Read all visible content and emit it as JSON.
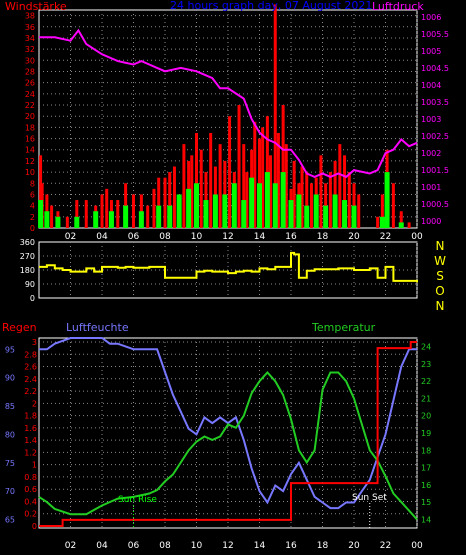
{
  "title": "24 hours graph day, 07 August 2021",
  "colors": {
    "wind_gust": "#ff0000",
    "wind_avg": "#00ff00",
    "pressure": "#ff00ff",
    "direction": "#ffff00",
    "rain": "#ff0000",
    "humidity": "#7777ff",
    "temperature": "#22cc22",
    "title": "#0000ff",
    "axis_text": "#ffffff",
    "dir_letters": "#ffff00"
  },
  "chart_data": [
    {
      "type": "bar",
      "title": "24 hours graph day, 07 August 2021",
      "left_axis_label": "Windstärke",
      "right_axis_label": "Luftdruck",
      "x_ticks": [
        "02",
        "04",
        "06",
        "08",
        "10",
        "12",
        "14",
        "16",
        "18",
        "20",
        "22",
        "00"
      ],
      "left_ticks": [
        "0",
        "2",
        "4",
        "6",
        "8",
        "10",
        "12",
        "14",
        "16",
        "18",
        "20",
        "22",
        "24",
        "26",
        "28",
        "30",
        "32",
        "34",
        "36",
        "38"
      ],
      "right_ticks": [
        "1000",
        "1000.5",
        "1001",
        "1001.5",
        "1002",
        "1002.5",
        "1003",
        "1003.5",
        "1004",
        "1004.5",
        "1005",
        "1005.5",
        "1006"
      ],
      "ylim_left": [
        0,
        39
      ],
      "ylim_right": [
        999.8,
        1006.2
      ],
      "grid": true,
      "series": [
        {
          "name": "Windstärke",
          "kind": "gust",
          "hours": [
            0.1,
            0.2,
            0.5,
            0.8,
            1.2,
            1.8,
            2.4,
            3.0,
            3.6,
            4.0,
            4.3,
            4.6,
            5.0,
            5.5,
            6.0,
            6.5,
            6.9,
            7.3,
            7.6,
            8.0,
            8.3,
            8.6,
            8.9,
            9.2,
            9.5,
            9.7,
            10.0,
            10.3,
            10.6,
            10.9,
            11.2,
            11.5,
            11.8,
            12.1,
            12.4,
            12.7,
            13.0,
            13.2,
            13.5,
            13.7,
            14.0,
            14.2,
            14.5,
            14.7,
            15.0,
            15.2,
            15.5,
            15.7,
            16.0,
            16.2,
            16.5,
            16.7,
            17.0,
            17.3,
            17.6,
            17.9,
            18.2,
            18.5,
            18.8,
            19.1,
            19.4,
            19.7,
            20.0,
            20.3,
            21.5,
            21.8,
            22.1,
            22.5,
            23.0,
            23.5
          ],
          "values": [
            13,
            8,
            6,
            4,
            3,
            2,
            5,
            5,
            4,
            6,
            7,
            5,
            5,
            8,
            6,
            6,
            4,
            7,
            9,
            9,
            10,
            11,
            6,
            15,
            12,
            13,
            17,
            14,
            10,
            17,
            11,
            15,
            12,
            20,
            10,
            22,
            15,
            10,
            14,
            19,
            16,
            18,
            20,
            13,
            40,
            17,
            22,
            15,
            7,
            12,
            8,
            11,
            10,
            8,
            9,
            13,
            8,
            10,
            12,
            15,
            13,
            10,
            8,
            6,
            2,
            6,
            14,
            8,
            3,
            1
          ]
        },
        {
          "name": "Windstärke Mittel",
          "kind": "average",
          "hours": [
            0.1,
            0.5,
            1.2,
            2.4,
            3.6,
            4.6,
            5.5,
            6.5,
            7.6,
            8.3,
            8.9,
            9.5,
            10.0,
            10.6,
            11.2,
            11.8,
            12.4,
            13.0,
            13.5,
            14.0,
            14.5,
            15.0,
            15.5,
            16.0,
            16.5,
            17.0,
            17.6,
            18.2,
            18.8,
            19.4,
            20.0,
            21.8,
            22.1,
            23.0
          ],
          "values": [
            5,
            3,
            2,
            2,
            3,
            3,
            4,
            3,
            4,
            4,
            6,
            7,
            8,
            5,
            6,
            6,
            8,
            5,
            9,
            8,
            10,
            8,
            10,
            5,
            6,
            4,
            6,
            4,
            6,
            5,
            4,
            2,
            10,
            1
          ]
        },
        {
          "name": "Luftdruck",
          "kind": "pressure",
          "hours": [
            0,
            1,
            2,
            2.5,
            3,
            4,
            5,
            6,
            6.5,
            7,
            7.5,
            8,
            9,
            10,
            11,
            11.5,
            12,
            13,
            13.5,
            14,
            14.5,
            15,
            15.5,
            16,
            16.5,
            17,
            17.5,
            18,
            18.5,
            19,
            19.5,
            20,
            21,
            21.5,
            22,
            22.5,
            23,
            23.5,
            24
          ],
          "values": [
            1005.4,
            1005.4,
            1005.3,
            1005.6,
            1005.2,
            1004.9,
            1004.7,
            1004.6,
            1004.7,
            1004.6,
            1004.5,
            1004.4,
            1004.5,
            1004.4,
            1004.2,
            1003.9,
            1003.9,
            1003.6,
            1003.0,
            1002.6,
            1002.4,
            1002.3,
            1002.1,
            1002.1,
            1001.8,
            1001.4,
            1001.3,
            1001.4,
            1001.3,
            1001.4,
            1001.3,
            1001.5,
            1001.4,
            1001.5,
            1002.0,
            1002.1,
            1002.4,
            1002.2,
            1002.3
          ]
        }
      ]
    },
    {
      "type": "line",
      "right_labels": [
        "N",
        "W",
        "S",
        "O",
        "N"
      ],
      "left_ticks": [
        "0",
        "90",
        "180",
        "270",
        "360"
      ],
      "ylim": [
        0,
        360
      ],
      "grid": true,
      "series": [
        {
          "name": "Windrichtung",
          "hours": [
            0,
            0.5,
            1,
            1.5,
            2,
            2.5,
            3,
            3.5,
            4,
            4.5,
            5,
            5.5,
            6,
            6.5,
            7,
            7.5,
            8,
            9,
            10,
            10.5,
            11,
            11.5,
            12,
            12.5,
            13,
            13.5,
            14,
            14.5,
            15,
            15.5,
            16,
            16.2,
            16.5,
            17,
            17.5,
            18,
            19,
            20,
            21,
            21.5,
            22,
            22.5,
            23,
            24
          ],
          "values": [
            200,
            210,
            190,
            180,
            170,
            170,
            190,
            170,
            200,
            200,
            195,
            200,
            195,
            195,
            200,
            200,
            130,
            130,
            170,
            175,
            170,
            170,
            160,
            170,
            175,
            170,
            190,
            185,
            200,
            200,
            290,
            280,
            130,
            175,
            185,
            185,
            190,
            180,
            190,
            130,
            200,
            110,
            110,
            100
          ]
        }
      ]
    },
    {
      "type": "line",
      "left_title": "Regen",
      "middle_title": "Luftfeuchte",
      "right_title": "Temperatur",
      "x_ticks": [
        "02",
        "04",
        "06",
        "08",
        "10",
        "12",
        "14",
        "16",
        "18",
        "20",
        "22",
        "00"
      ],
      "rain_ticks": [
        "0",
        "0.2",
        "0.4",
        "0.6",
        "0.8",
        "1",
        "1.2",
        "1.4",
        "1.6",
        "1.8",
        "2",
        "2.2",
        "2.4",
        "2.6",
        "2.8",
        "3"
      ],
      "humidity_ticks": [
        "65",
        "70",
        "75",
        "80",
        "85",
        "90",
        "95"
      ],
      "temperature_ticks": [
        "14",
        "15",
        "16",
        "17",
        "18",
        "19",
        "20",
        "21",
        "22",
        "23",
        "24"
      ],
      "ylim_rain": [
        0,
        3
      ],
      "ylim_humidity": [
        63.5,
        97
      ],
      "ylim_temperature": [
        13.5,
        24.5
      ],
      "annotations": [
        "Sun Rise",
        "Sun Set"
      ],
      "grid": true,
      "series": [
        {
          "name": "Regen",
          "hours": [
            0,
            1.5,
            1.5,
            16,
            16,
            21.5,
            21.5,
            23.6,
            23.6,
            24
          ],
          "values": [
            0,
            0,
            0.1,
            0.1,
            0.7,
            0.7,
            2.9,
            2.9,
            3.0,
            3.0
          ]
        },
        {
          "name": "Luftfeuchte",
          "hours": [
            0,
            0.5,
            1,
            2,
            3,
            4,
            4.5,
            5,
            6,
            7,
            7.5,
            8,
            8.5,
            9,
            9.5,
            10,
            10.5,
            11,
            11.5,
            12,
            12.5,
            13,
            13.5,
            14,
            14.5,
            15,
            15.5,
            16,
            16.5,
            17,
            17.5,
            18,
            18.5,
            19,
            19.5,
            20,
            20.5,
            21,
            21.5,
            22,
            22.5,
            23,
            23.5,
            24
          ],
          "values": [
            95,
            95,
            96,
            97,
            97,
            97,
            96,
            96,
            95,
            95,
            95,
            91,
            87,
            84,
            81,
            80,
            83,
            82,
            83,
            82,
            83,
            79,
            74,
            70,
            68,
            71,
            70,
            73,
            75,
            72,
            69,
            68,
            67,
            67,
            68,
            68,
            70,
            72,
            76,
            80,
            86,
            92,
            95,
            95
          ]
        },
        {
          "name": "Temperatur",
          "hours": [
            0,
            0.5,
            1,
            2,
            3,
            4,
            5,
            6,
            7,
            7.5,
            8,
            8.5,
            9,
            9.5,
            10,
            10.5,
            11,
            11.5,
            12,
            12.5,
            13,
            13.5,
            14,
            14.5,
            15,
            15.5,
            16,
            16.5,
            17,
            17.5,
            18,
            18.5,
            19,
            19.5,
            20,
            20.5,
            21,
            21.5,
            22,
            22.5,
            23,
            23.5,
            24
          ],
          "values": [
            15.3,
            15.0,
            14.6,
            14.3,
            14.3,
            14.8,
            15.2,
            15.3,
            15.5,
            15.7,
            16.2,
            16.6,
            17.3,
            18.0,
            18.5,
            18.8,
            18.6,
            18.8,
            19.5,
            19.3,
            20.0,
            21.3,
            22.0,
            22.5,
            22.0,
            21.2,
            19.8,
            18.0,
            17.3,
            18.0,
            21.5,
            22.5,
            22.5,
            22.0,
            21.0,
            19.5,
            18.0,
            17.4,
            16.5,
            15.5,
            15.0,
            14.5,
            14.0
          ]
        }
      ]
    }
  ]
}
